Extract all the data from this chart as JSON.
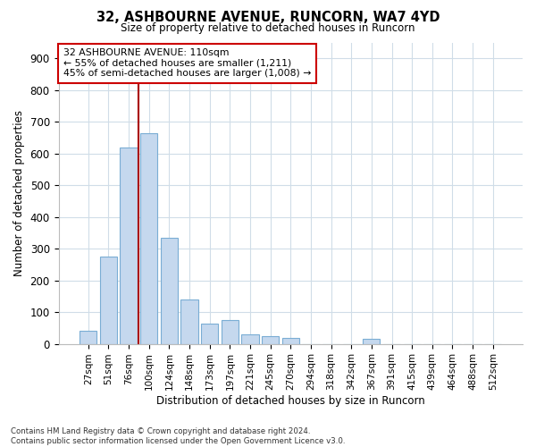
{
  "title": "32, ASHBOURNE AVENUE, RUNCORN, WA7 4YD",
  "subtitle": "Size of property relative to detached houses in Runcorn",
  "xlabel": "Distribution of detached houses by size in Runcorn",
  "ylabel": "Number of detached properties",
  "bar_color": "#c5d8ee",
  "bar_edge_color": "#7aadd4",
  "background_color": "#ffffff",
  "grid_color": "#d0dde8",
  "bins": [
    "27sqm",
    "51sqm",
    "76sqm",
    "100sqm",
    "124sqm",
    "148sqm",
    "173sqm",
    "197sqm",
    "221sqm",
    "245sqm",
    "270sqm",
    "294sqm",
    "318sqm",
    "342sqm",
    "367sqm",
    "391sqm",
    "415sqm",
    "439sqm",
    "464sqm",
    "488sqm",
    "512sqm"
  ],
  "values": [
    40,
    275,
    620,
    665,
    335,
    140,
    65,
    75,
    30,
    25,
    20,
    0,
    0,
    0,
    15,
    0,
    0,
    0,
    0,
    0,
    0
  ],
  "ylim": [
    0,
    950
  ],
  "yticks": [
    0,
    100,
    200,
    300,
    400,
    500,
    600,
    700,
    800,
    900
  ],
  "property_line_x": 2.5,
  "property_line_color": "#aa0000",
  "annotation_text": "32 ASHBOURNE AVENUE: 110sqm\n← 55% of detached houses are smaller (1,211)\n45% of semi-detached houses are larger (1,008) →",
  "annotation_box_color": "#ffffff",
  "annotation_box_edge": "#cc0000",
  "footnote": "Contains HM Land Registry data © Crown copyright and database right 2024.\nContains public sector information licensed under the Open Government Licence v3.0.",
  "figsize": [
    6.0,
    5.0
  ],
  "dpi": 100
}
